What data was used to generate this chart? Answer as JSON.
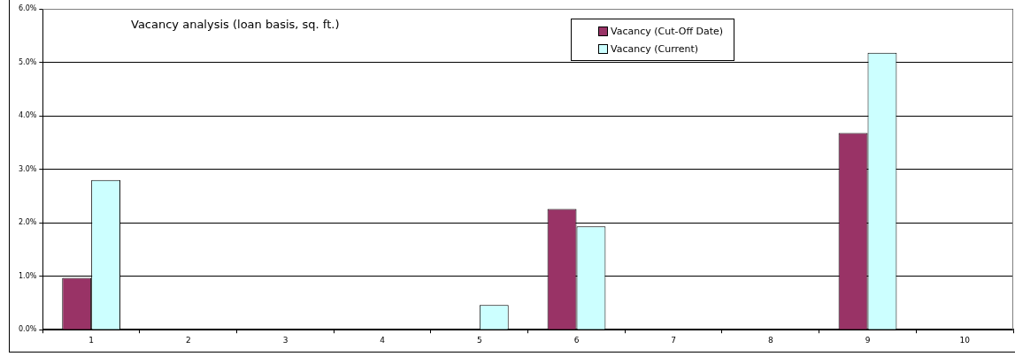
{
  "chart_data": {
    "type": "bar",
    "title": "Vacancy analysis (loan basis, sq. ft.)",
    "categories": [
      "1",
      "2",
      "3",
      "4",
      "5",
      "6",
      "7",
      "8",
      "9",
      "10"
    ],
    "series": [
      {
        "name": "Vacancy (Cut-Off Date)",
        "color": "#993366",
        "values": [
          0.97,
          null,
          null,
          null,
          null,
          2.26,
          null,
          null,
          3.68,
          null
        ]
      },
      {
        "name": "Vacancy (Current)",
        "color": "#ccffff",
        "values": [
          2.8,
          null,
          null,
          null,
          0.46,
          1.93,
          null,
          null,
          5.18,
          null
        ]
      }
    ],
    "ylim": [
      0,
      6
    ],
    "yticks": [
      {
        "value": 0,
        "label": "0.0%"
      },
      {
        "value": 1,
        "label": "1.0%"
      },
      {
        "value": 2,
        "label": "2.0%"
      },
      {
        "value": 3,
        "label": "3.0%"
      },
      {
        "value": 4,
        "label": "4.0%"
      },
      {
        "value": 5,
        "label": "5.0%"
      },
      {
        "value": 6,
        "label": "6.0%"
      }
    ],
    "grid": "y",
    "legend": "top"
  }
}
